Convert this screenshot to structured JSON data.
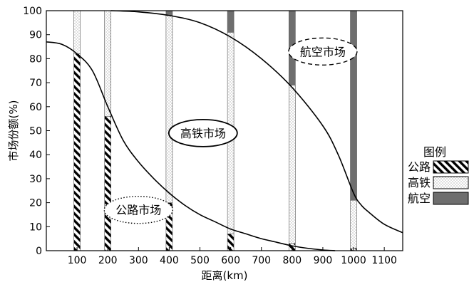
{
  "chart_data": {
    "type": "bar",
    "xlabel": "距离(km)",
    "ylabel": "市场份额(%)",
    "xlim": [
      0,
      1160
    ],
    "ylim": [
      0,
      100
    ],
    "x_ticks": [
      "100",
      "200",
      "300",
      "400",
      "500",
      "600",
      "700",
      "800",
      "900",
      "1000",
      "1100"
    ],
    "y_ticks": [
      "0",
      "10",
      "20",
      "30",
      "40",
      "50",
      "60",
      "70",
      "80",
      "90",
      "100"
    ],
    "grid": false,
    "legend_position": "right",
    "legend": {
      "title": "图例",
      "items": [
        {
          "label": "公路",
          "pattern": "hatch"
        },
        {
          "label": "高铁",
          "pattern": "dots"
        },
        {
          "label": "航空",
          "pattern": "solid"
        }
      ]
    },
    "stacked_bars": {
      "x": [
        100,
        200,
        400,
        600,
        800,
        1000
      ],
      "series": [
        {
          "name": "公路",
          "values": [
            82,
            56,
            20,
            7,
            3,
            1
          ]
        },
        {
          "name": "高铁",
          "values": [
            18,
            44,
            78,
            84,
            66,
            20
          ]
        },
        {
          "name": "航空",
          "values": [
            0,
            0,
            2,
            9,
            31,
            79
          ]
        }
      ]
    },
    "curves": [
      {
        "label": "公路市场",
        "points": [
          [
            0,
            87
          ],
          [
            50,
            86
          ],
          [
            100,
            82
          ],
          [
            150,
            75
          ],
          [
            200,
            60
          ],
          [
            250,
            46
          ],
          [
            300,
            37
          ],
          [
            350,
            30
          ],
          [
            400,
            24
          ],
          [
            450,
            19
          ],
          [
            500,
            15
          ],
          [
            550,
            12
          ],
          [
            600,
            9
          ],
          [
            650,
            7
          ],
          [
            700,
            5
          ],
          [
            750,
            3.5
          ],
          [
            800,
            2
          ],
          [
            850,
            1
          ],
          [
            900,
            0.3
          ],
          [
            940,
            0
          ]
        ]
      },
      {
        "label": "高铁市场",
        "points": [
          [
            210,
            100
          ],
          [
            300,
            99.5
          ],
          [
            400,
            98
          ],
          [
            500,
            95
          ],
          [
            600,
            89
          ],
          [
            700,
            80
          ],
          [
            800,
            68
          ],
          [
            900,
            52
          ],
          [
            950,
            40
          ],
          [
            1000,
            24
          ],
          [
            1025,
            19
          ],
          [
            1050,
            16
          ],
          [
            1100,
            11
          ],
          [
            1160,
            7.5
          ]
        ]
      }
    ],
    "annotations": [
      {
        "text": "航空市场",
        "border": "dashed",
        "x": 900,
        "y": 83
      },
      {
        "text": "高铁市场",
        "border": "solid",
        "x": 510,
        "y": 49
      },
      {
        "text": "公路市场",
        "border": "dotted",
        "x": 300,
        "y": 17
      }
    ],
    "colors": {
      "air": "#6e6e6e",
      "rail_dots": "#8c8c8c",
      "road_hatch": "#000000"
    }
  }
}
